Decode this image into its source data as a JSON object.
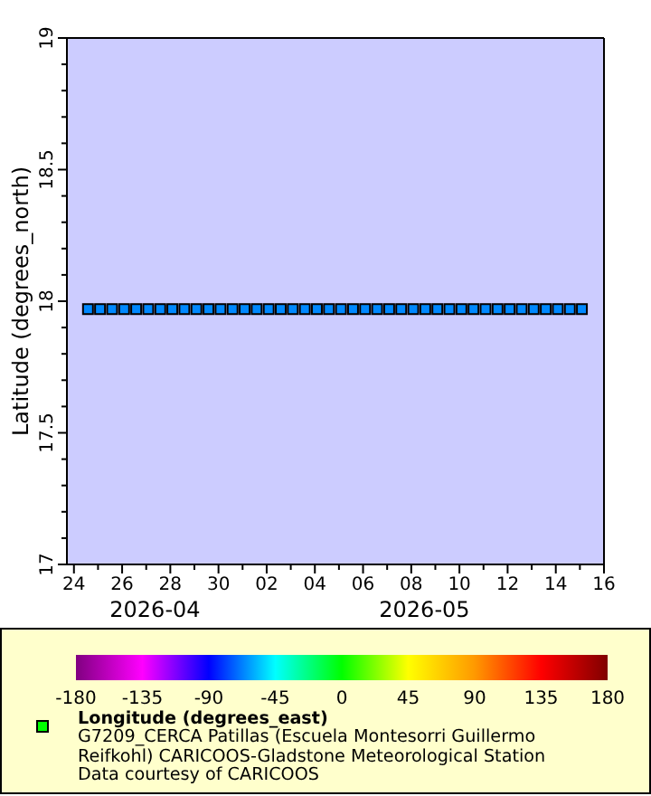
{
  "chart_data": {
    "type": "scatter",
    "ylabel": "Latitude (degrees_north)",
    "clabel": "Longitude (degrees_east)",
    "marker": "square",
    "clim": [
      -180,
      180
    ],
    "cticks": [
      -180,
      -135,
      -90,
      -45,
      0,
      45,
      90,
      135,
      180
    ],
    "xlim": [
      "2026-04-23T17:00",
      "2026-05-16"
    ],
    "xticks": [
      {
        "value": "2026-04-24",
        "label": "24"
      },
      {
        "value": "2026-04-25",
        "label": null
      },
      {
        "value": "2026-04-26",
        "label": "26"
      },
      {
        "value": "2026-04-27",
        "label": null
      },
      {
        "value": "2026-04-28",
        "label": "28"
      },
      {
        "value": "2026-04-29",
        "label": null
      },
      {
        "value": "2026-04-30",
        "label": "30"
      },
      {
        "value": "2026-05-01",
        "label": null
      },
      {
        "value": "2026-05-02",
        "label": "02"
      },
      {
        "value": "2026-05-03",
        "label": null
      },
      {
        "value": "2026-05-04",
        "label": "04"
      },
      {
        "value": "2026-05-05",
        "label": null
      },
      {
        "value": "2026-05-06",
        "label": "06"
      },
      {
        "value": "2026-05-07",
        "label": null
      },
      {
        "value": "2026-05-08",
        "label": "08"
      },
      {
        "value": "2026-05-09",
        "label": null
      },
      {
        "value": "2026-05-10",
        "label": "10"
      },
      {
        "value": "2026-05-11",
        "label": null
      },
      {
        "value": "2026-05-12",
        "label": "12"
      },
      {
        "value": "2026-05-13",
        "label": null
      },
      {
        "value": "2026-05-14",
        "label": "14"
      },
      {
        "value": "2026-05-15",
        "label": null
      },
      {
        "value": "2026-05-16",
        "label": "16"
      }
    ],
    "ylim": [
      17,
      19
    ],
    "yticks": [
      17,
      {
        "value": 17.1,
        "label": null
      },
      {
        "value": 17.2,
        "label": null
      },
      {
        "value": 17.3,
        "label": null
      },
      {
        "value": 17.4,
        "label": null
      },
      17.5,
      {
        "value": 17.6,
        "label": null
      },
      {
        "value": 17.7,
        "label": null
      },
      {
        "value": 17.8,
        "label": null
      },
      {
        "value": 17.9,
        "label": null
      },
      18,
      {
        "value": 18.1,
        "label": null
      },
      {
        "value": 18.2,
        "label": null
      },
      {
        "value": 18.3,
        "label": null
      },
      {
        "value": 18.4,
        "label": null
      },
      18.5,
      {
        "value": 18.6,
        "label": null
      },
      {
        "value": 18.7,
        "label": null
      },
      {
        "value": 18.8,
        "label": null
      },
      {
        "value": 18.9,
        "label": null
      },
      19
    ],
    "annotations": [
      "2026-04",
      "2026-05",
      "G7209_CERCA Patillas (Escuela Montesorri Guillermo Reifkohl) CARICOOS-Gladstone Meteorological Station",
      "Data courtesy of CARICOOS"
    ],
    "x": [
      "2026-04-24T14:00",
      "2026-04-25T02:00",
      "2026-04-25T14:00",
      "2026-04-26T02:00",
      "2026-04-26T14:00",
      "2026-04-27T02:00",
      "2026-04-27T14:00",
      "2026-04-28T02:00",
      "2026-04-28T14:00",
      "2026-04-29T02:00",
      "2026-04-29T14:00",
      "2026-04-30T02:00",
      "2026-04-30T14:00",
      "2026-05-01T02:00",
      "2026-05-01T14:00",
      "2026-05-02T02:00",
      "2026-05-02T14:00",
      "2026-05-03T02:00",
      "2026-05-03T14:00",
      "2026-05-04T02:00",
      "2026-05-04T14:00",
      "2026-05-05T02:00",
      "2026-05-05T14:00",
      "2026-05-06T02:00",
      "2026-05-06T14:00",
      "2026-05-07T02:00",
      "2026-05-07T14:00",
      "2026-05-08T02:00",
      "2026-05-08T14:00",
      "2026-05-09T02:00",
      "2026-05-09T14:00",
      "2026-05-10T02:00",
      "2026-05-10T14:00",
      "2026-05-11T02:00",
      "2026-05-11T14:00",
      "2026-05-12T02:00",
      "2026-05-12T14:00",
      "2026-05-13T02:00",
      "2026-05-13T14:00",
      "2026-05-14T02:00",
      "2026-05-14T14:00",
      "2026-05-15T02:00"
    ],
    "values": [
      17.97,
      17.97,
      17.97,
      17.97,
      17.97,
      17.97,
      17.97,
      17.97,
      17.97,
      17.97,
      17.97,
      17.97,
      17.97,
      17.97,
      17.97,
      17.97,
      17.97,
      17.97,
      17.97,
      17.97,
      17.97,
      17.97,
      17.97,
      17.97,
      17.97,
      17.97,
      17.97,
      17.97,
      17.97,
      17.97,
      17.97,
      17.97,
      17.97,
      17.97,
      17.97,
      17.97,
      17.97,
      17.97,
      17.97,
      17.97,
      17.97,
      17.97
    ],
    "cvalues": [
      -66,
      -66,
      -66,
      -66,
      -66,
      -66,
      -66,
      -66,
      -66,
      -66,
      -66,
      -66,
      -66,
      -66,
      -66,
      -66,
      -66,
      -66,
      -66,
      -66,
      -66,
      -66,
      -66,
      -66,
      -66,
      -66,
      -66,
      -66,
      -66,
      -66,
      -66,
      -66,
      -66,
      -66,
      -66,
      -66,
      -66,
      -66,
      -66,
      -66,
      -66,
      -66
    ]
  }
}
